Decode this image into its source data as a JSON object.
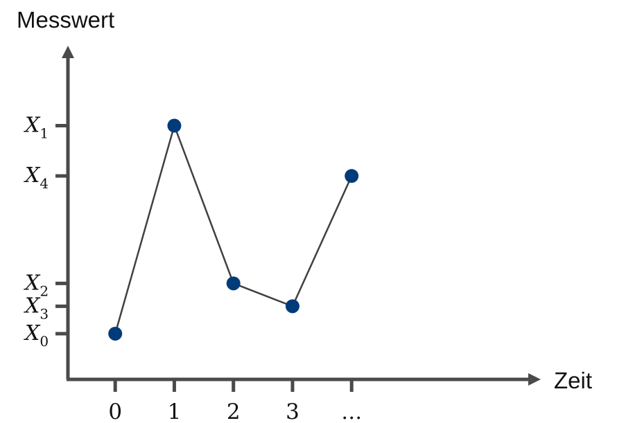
{
  "chart_data": {
    "type": "line",
    "title": "",
    "xlabel": "Zeit",
    "ylabel": "Messwert",
    "x_ticks": [
      "0",
      "1",
      "2",
      "3",
      "..."
    ],
    "y_ticks": [
      {
        "base": "X",
        "sub": "1",
        "value": 7.55
      },
      {
        "base": "X",
        "sub": "4",
        "value": 6.45
      },
      {
        "base": "X",
        "sub": "2",
        "value": 4.1
      },
      {
        "base": "X",
        "sub": "3",
        "value": 3.6
      },
      {
        "base": "X",
        "sub": "0",
        "value": 3.0
      }
    ],
    "points": [
      {
        "x": 0,
        "y": 3.0
      },
      {
        "x": 1,
        "y": 7.55
      },
      {
        "x": 2,
        "y": 4.1
      },
      {
        "x": 3,
        "y": 3.6
      },
      {
        "x": 4,
        "y": 6.45
      }
    ],
    "xlim": [
      -0.8,
      7.2
    ],
    "ylim": [
      2.0,
      9.3
    ],
    "grid": false,
    "colors": {
      "axis": "#4a4a4a",
      "line": "#404040",
      "marker": "#003b7a"
    }
  }
}
